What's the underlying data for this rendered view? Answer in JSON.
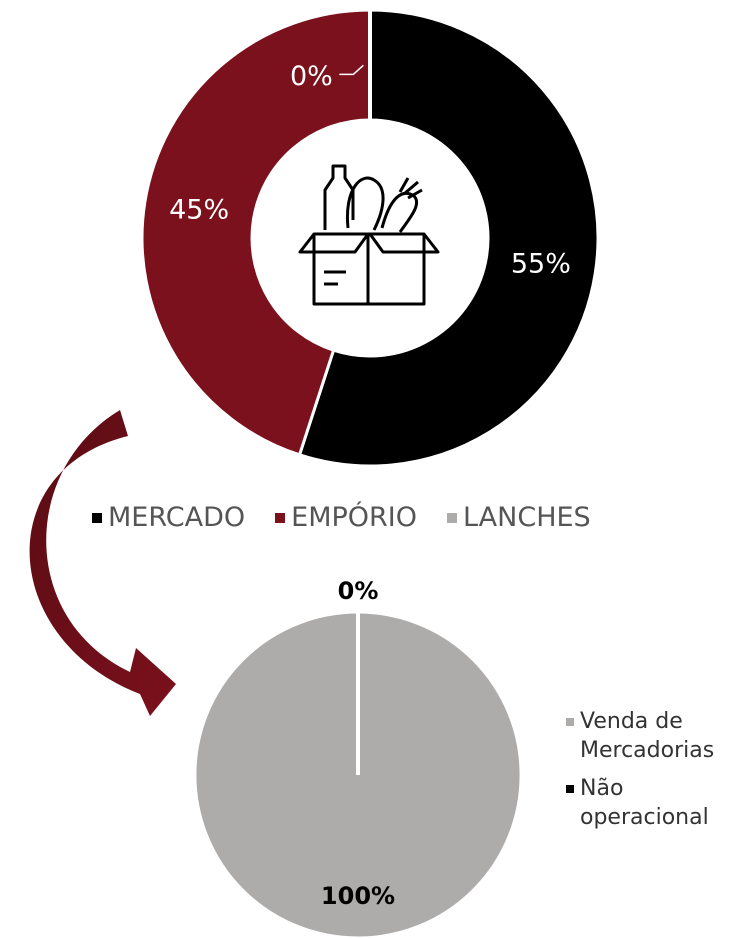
{
  "chart_data": [
    {
      "type": "donut",
      "categories": [
        "MERCADO",
        "EMPÓRIO",
        "LANCHES"
      ],
      "values": [
        55,
        45,
        0
      ],
      "value_labels": [
        "55%",
        "45%",
        "0%"
      ],
      "colors": [
        "#000000",
        "#7b111c",
        "#aeabab"
      ],
      "legend": "bottom"
    },
    {
      "type": "pie",
      "categories": [
        "Venda de Mercadorias",
        "Não operacional"
      ],
      "values": [
        100,
        0
      ],
      "value_labels": [
        "100%",
        "0%"
      ],
      "colors": [
        "#aeabab",
        "#000000"
      ],
      "legend": "right"
    }
  ]
}
